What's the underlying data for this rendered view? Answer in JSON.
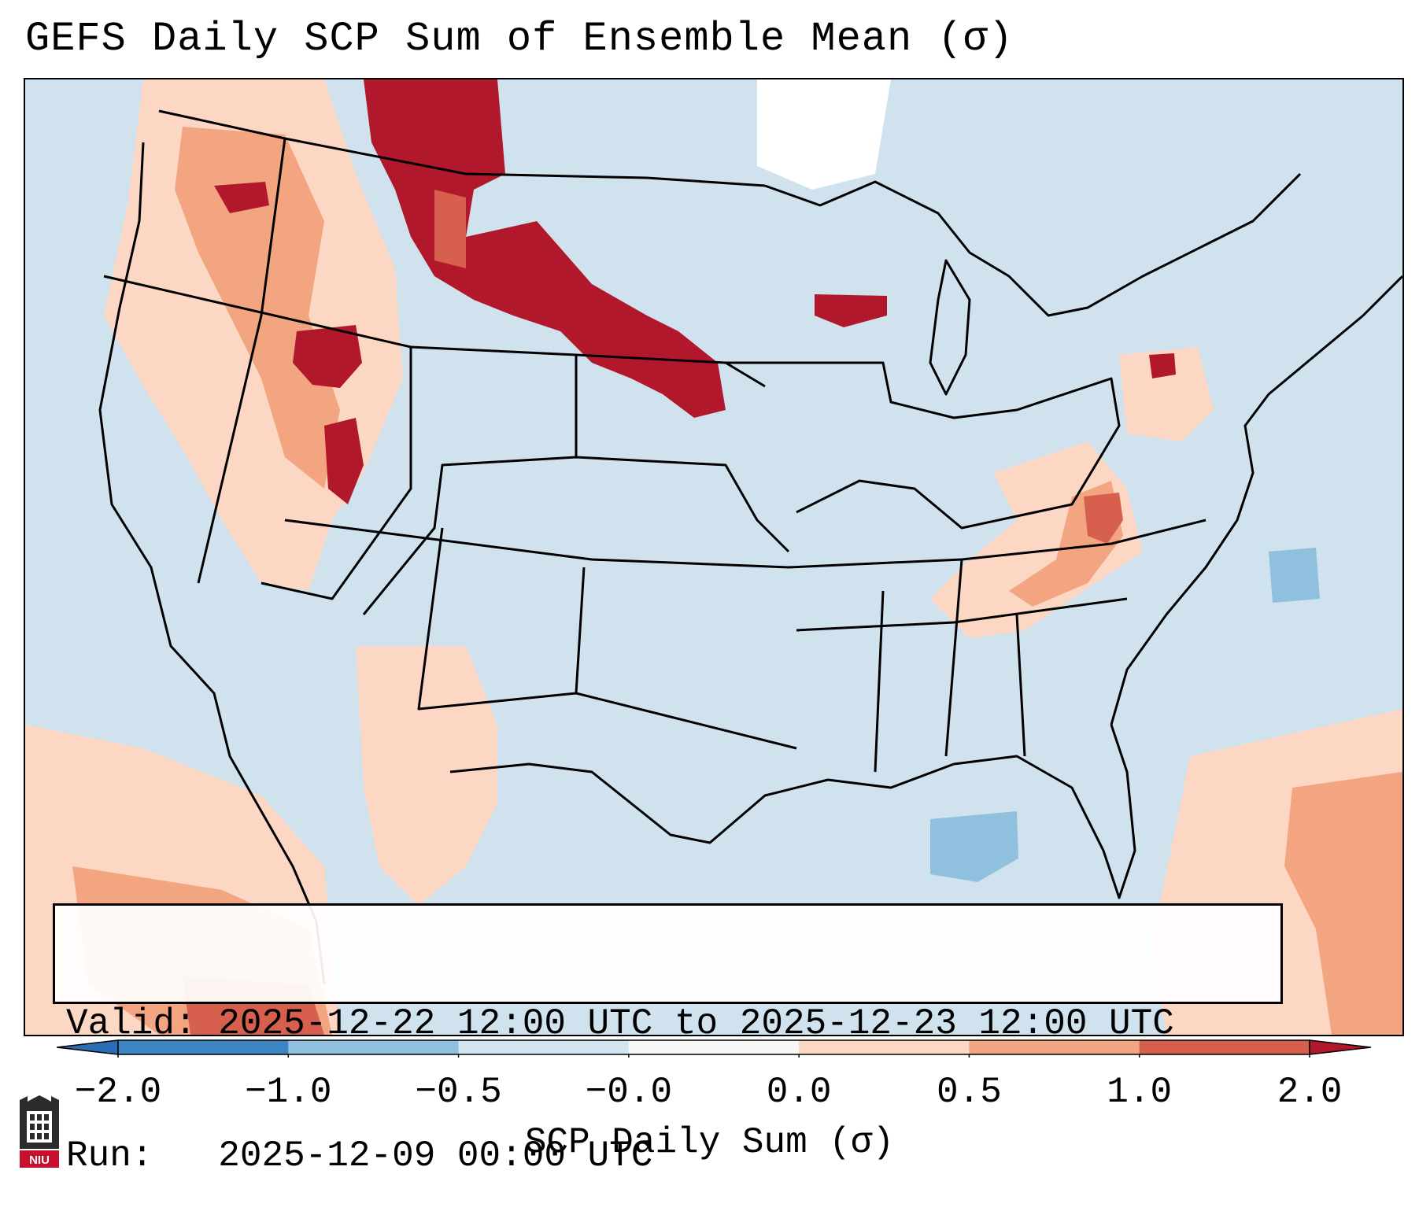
{
  "title": "GEFS Daily SCP Sum of Ensemble Mean (σ)",
  "info": {
    "valid_label": "Valid:",
    "valid_value": "2025-12-22 12:00 UTC to 2025-12-23 12:00 UTC",
    "run_label": "Run:",
    "run_value": "2025-12-09 00:00 UTC"
  },
  "colorbar": {
    "label": "SCP Daily Sum (σ)",
    "ticks": [
      "−2.0",
      "−1.0",
      "−0.5",
      "−0.0",
      "0.0",
      "0.5",
      "1.0",
      "2.0"
    ],
    "bins": [
      {
        "range": "< -2.0",
        "color": "#2b6db5"
      },
      {
        "range": "-2.0 to -1.0",
        "color": "#3d85c2"
      },
      {
        "range": "-1.0 to -0.5",
        "color": "#8fc0dd"
      },
      {
        "range": "-0.5 to -0.0",
        "color": "#d2e5f0"
      },
      {
        "range": "-0.0 to 0.0",
        "color": "#f7f7f7"
      },
      {
        "range": "0.0 to 0.5",
        "color": "#fbd7c4"
      },
      {
        "range": "0.5 to 1.0",
        "color": "#f3a481"
      },
      {
        "range": "1.0 to 2.0",
        "color": "#d6604d"
      },
      {
        "range": "> 2.0",
        "color": "#b2182b"
      }
    ]
  },
  "map": {
    "region": "Contiguous United States",
    "background_color": "#cfe2ee",
    "features": [
      "Strong positive SCP anomaly over Montana and North Dakota",
      "Positive anomalies over the Pacific Northwest and Idaho",
      "Positive anomalies over Kentucky, Tennessee and West Virginia",
      "Positive anomalies over the Atlantic and Caribbean",
      "Negative anomaly patch over the Gulf of Mexico"
    ]
  },
  "logo": {
    "text": "NIU"
  }
}
